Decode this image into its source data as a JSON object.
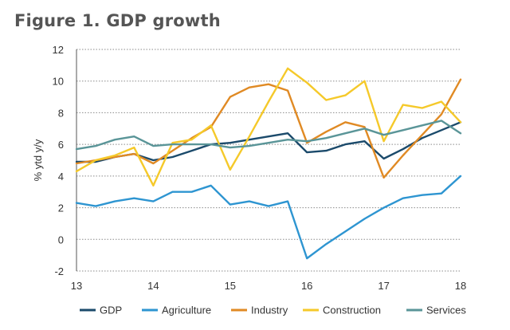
{
  "chart_data": {
    "type": "line",
    "title": "Figure 1. GDP growth",
    "xlabel": "",
    "ylabel": "% ytd y/y",
    "xlim": [
      13,
      18
    ],
    "ylim": [
      -2,
      12
    ],
    "x_ticks": [
      "13",
      "14",
      "15",
      "16",
      "17",
      "18"
    ],
    "y_ticks": [
      12,
      10,
      8,
      6,
      4,
      2,
      0,
      -2
    ],
    "grid": "horizontal-dotted",
    "legend": "bottom",
    "x": [
      13.0,
      13.25,
      13.5,
      13.75,
      14.0,
      14.25,
      14.5,
      14.75,
      15.0,
      15.25,
      15.5,
      15.75,
      16.0,
      16.25,
      16.5,
      16.75,
      17.0,
      17.25,
      17.5,
      17.75,
      18.0
    ],
    "series": [
      {
        "name": "GDP",
        "color": "#1b4a6b",
        "values": [
          4.9,
          4.9,
          5.2,
          5.4,
          5.0,
          5.2,
          5.6,
          6.0,
          6.1,
          6.3,
          6.5,
          6.7,
          5.5,
          5.6,
          6.0,
          6.2,
          5.1,
          5.7,
          6.4,
          6.9,
          7.4
        ]
      },
      {
        "name": "Agriculture",
        "color": "#2e95d1",
        "values": [
          2.3,
          2.1,
          2.4,
          2.6,
          2.4,
          3.0,
          3.0,
          3.4,
          2.2,
          2.4,
          2.1,
          2.4,
          -1.2,
          -0.3,
          0.5,
          1.3,
          2.0,
          2.6,
          2.8,
          2.9,
          4.0
        ]
      },
      {
        "name": "Industry",
        "color": "#e08a24",
        "values": [
          4.8,
          5.0,
          5.2,
          5.4,
          4.8,
          5.6,
          6.4,
          7.1,
          9.0,
          9.6,
          9.8,
          9.4,
          6.1,
          6.8,
          7.4,
          7.1,
          3.9,
          5.3,
          6.6,
          7.9,
          10.1
        ]
      },
      {
        "name": "Construction",
        "color": "#f5c92a",
        "values": [
          4.3,
          5.0,
          5.3,
          5.8,
          3.4,
          6.1,
          6.3,
          7.2,
          4.4,
          6.5,
          8.7,
          10.8,
          9.9,
          8.8,
          9.1,
          10.0,
          6.2,
          8.5,
          8.3,
          8.7,
          7.4
        ]
      },
      {
        "name": "Services",
        "color": "#5a9598",
        "values": [
          5.7,
          5.9,
          6.3,
          6.5,
          5.9,
          6.0,
          6.0,
          6.0,
          5.8,
          5.9,
          6.1,
          6.3,
          6.2,
          6.4,
          6.7,
          7.0,
          6.6,
          6.9,
          7.2,
          7.5,
          6.7
        ]
      }
    ]
  }
}
